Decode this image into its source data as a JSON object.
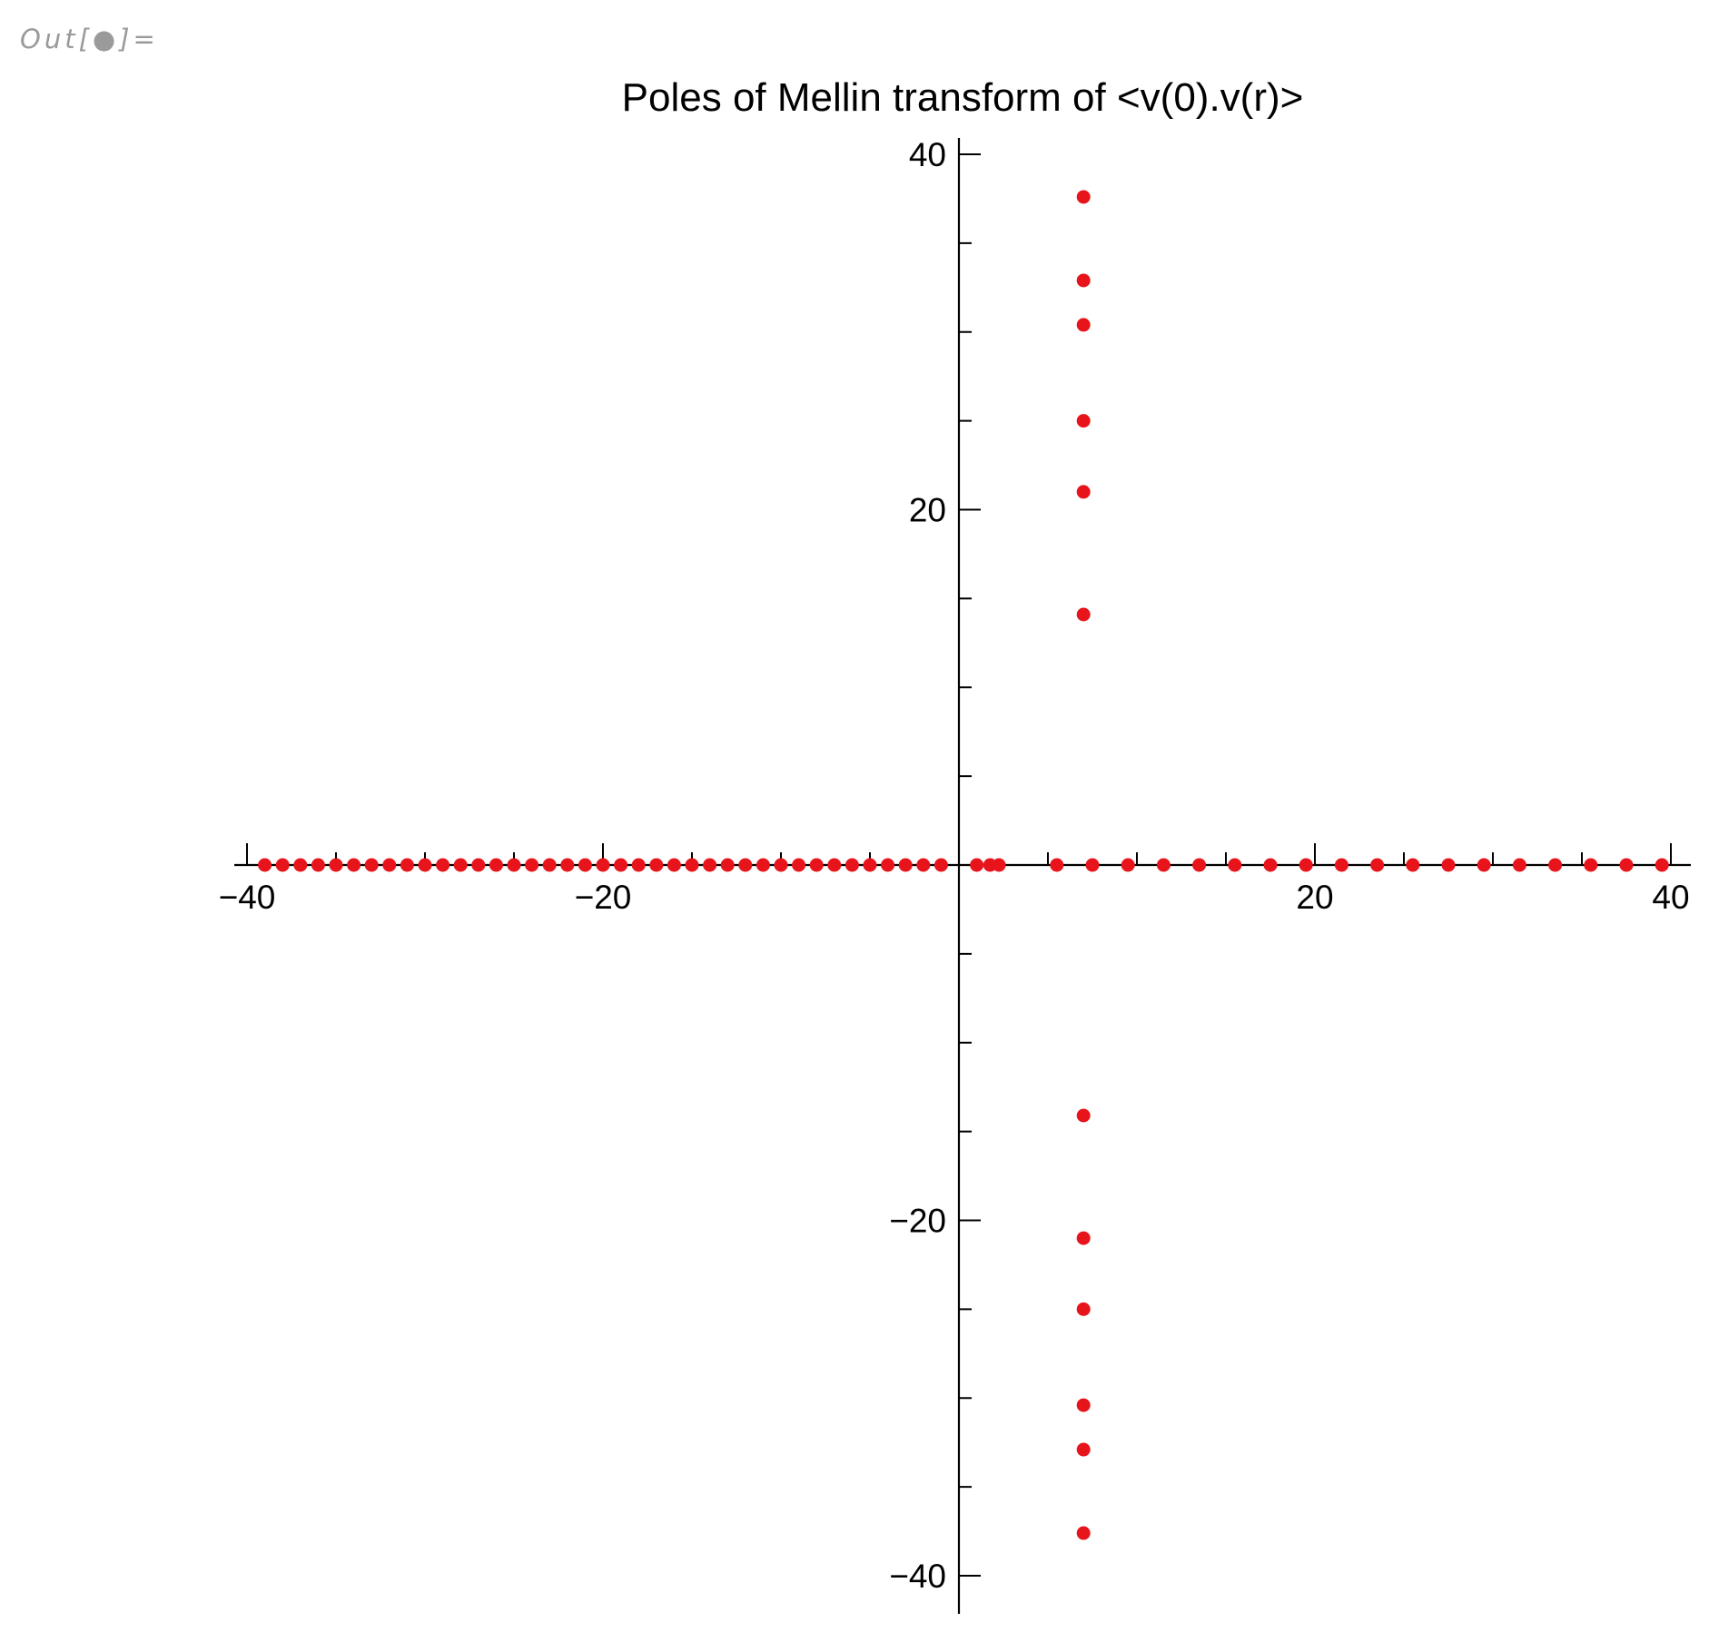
{
  "cell": {
    "out_label": "Out[●]="
  },
  "chart_data": {
    "type": "scatter",
    "title": "Poles of Mellin transform of <v(0).v(r)>",
    "xlabel": "",
    "ylabel": "",
    "xlim": [
      -40,
      40
    ],
    "ylim": [
      -40,
      40
    ],
    "x_ticks": [
      -40,
      -20,
      20,
      40
    ],
    "x_tick_labels": [
      "−40",
      "−20",
      "20",
      "40"
    ],
    "y_ticks": [
      40,
      20,
      -20,
      -40
    ],
    "y_tick_labels": [
      "40",
      "20",
      "−20",
      "−40"
    ],
    "minor_tick_step": 5,
    "grid": false,
    "axes_origin": [
      0,
      0
    ],
    "marker_color": "#e8141b",
    "series": [
      {
        "points": [
          [
            -39,
            0
          ],
          [
            -38,
            0
          ],
          [
            -37,
            0
          ],
          [
            -36,
            0
          ],
          [
            -35,
            0
          ],
          [
            -34,
            0
          ],
          [
            -33,
            0
          ],
          [
            -32,
            0
          ],
          [
            -31,
            0
          ],
          [
            -30,
            0
          ],
          [
            -29,
            0
          ],
          [
            -28,
            0
          ],
          [
            -27,
            0
          ],
          [
            -26,
            0
          ],
          [
            -25,
            0
          ],
          [
            -24,
            0
          ],
          [
            -23,
            0
          ],
          [
            -22,
            0
          ],
          [
            -21,
            0
          ],
          [
            -20,
            0
          ],
          [
            -19,
            0
          ],
          [
            -18,
            0
          ],
          [
            -17,
            0
          ],
          [
            -16,
            0
          ],
          [
            -15,
            0
          ],
          [
            -14,
            0
          ],
          [
            -13,
            0
          ],
          [
            -12,
            0
          ],
          [
            -11,
            0
          ],
          [
            -10,
            0
          ],
          [
            -9,
            0
          ],
          [
            -8,
            0
          ],
          [
            -7,
            0
          ],
          [
            -6,
            0
          ],
          [
            -5,
            0
          ],
          [
            -4,
            0
          ],
          [
            -3,
            0
          ],
          [
            -2,
            0
          ],
          [
            -1,
            0
          ],
          [
            1,
            0
          ],
          [
            1.75,
            0
          ],
          [
            2.25,
            0
          ],
          [
            5.5,
            0
          ],
          [
            7.5,
            0
          ],
          [
            9.5,
            0
          ],
          [
            11.5,
            0
          ],
          [
            13.5,
            0
          ],
          [
            15.5,
            0
          ],
          [
            17.5,
            0
          ],
          [
            19.5,
            0
          ],
          [
            21.5,
            0
          ],
          [
            23.5,
            0
          ],
          [
            25.5,
            0
          ],
          [
            27.5,
            0
          ],
          [
            29.5,
            0
          ],
          [
            31.5,
            0
          ],
          [
            33.5,
            0
          ],
          [
            35.5,
            0
          ],
          [
            37.5,
            0
          ],
          [
            39.5,
            0
          ],
          [
            7,
            37.6
          ],
          [
            7,
            32.9
          ],
          [
            7,
            30.4
          ],
          [
            7,
            25.0
          ],
          [
            7,
            21.0
          ],
          [
            7,
            14.1
          ],
          [
            7,
            -14.1
          ],
          [
            7,
            -21.0
          ],
          [
            7,
            -25.0
          ],
          [
            7,
            -30.4
          ],
          [
            7,
            -32.9
          ],
          [
            7,
            -37.6
          ]
        ]
      }
    ]
  }
}
